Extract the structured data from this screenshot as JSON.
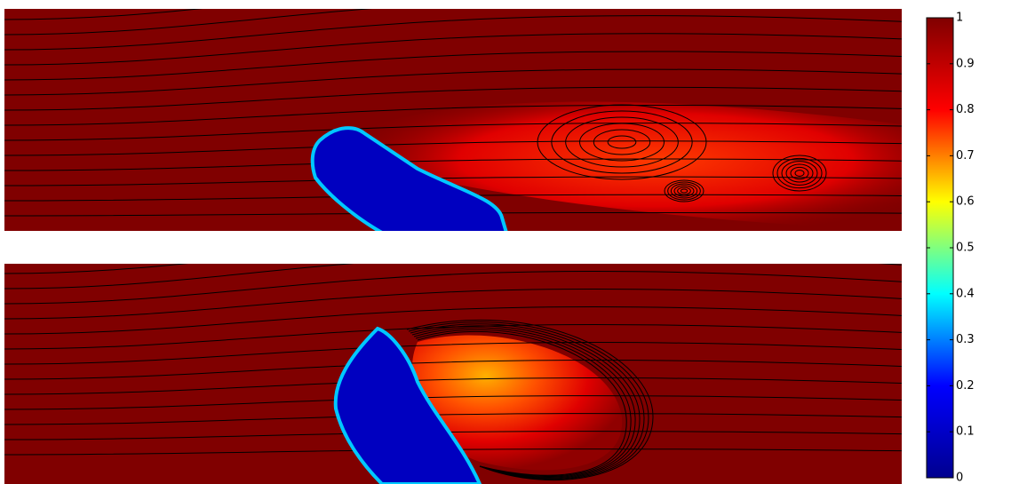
{
  "chart_data": {
    "type": "heatmap",
    "colorbar": {
      "ylim": [
        0,
        1
      ],
      "yticks": [
        0,
        0.1,
        0.2,
        0.3,
        0.4,
        0.5,
        0.6,
        0.7,
        0.8,
        0.9,
        1
      ],
      "colormap": [
        "#00008f",
        "#0000ff",
        "#00ffff",
        "#ffff00",
        "#ff0000",
        "#800000"
      ]
    }
  }
}
